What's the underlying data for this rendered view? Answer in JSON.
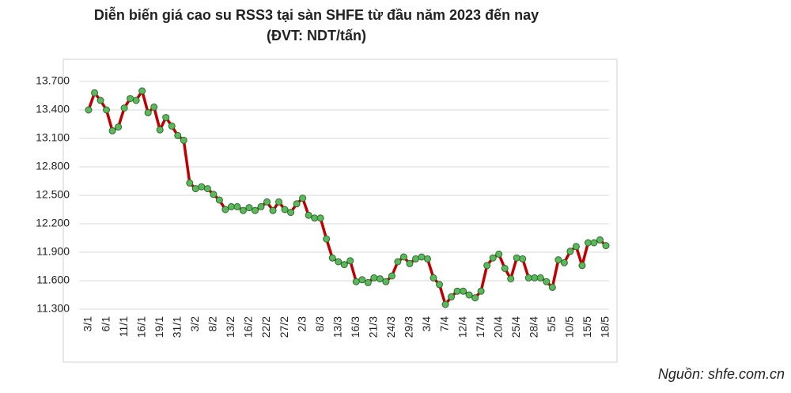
{
  "chart_data": {
    "type": "line",
    "title": "Diễn biến giá cao su RSS3 tại sàn SHFE từ đầu năm 2023 đến nay",
    "subtitle": "(ĐVT: NDT/tấn)",
    "source": "Nguồn: shfe.com.cn",
    "categories": [
      "3/1",
      null,
      null,
      "6/1",
      null,
      null,
      "11/1",
      null,
      null,
      "16/1",
      null,
      null,
      "19/1",
      null,
      null,
      "31/1",
      null,
      null,
      "3/2",
      null,
      null,
      "8/2",
      null,
      null,
      "13/2",
      null,
      null,
      "16/2",
      null,
      null,
      "22/2",
      null,
      null,
      "27/2",
      null,
      null,
      "2/3",
      null,
      null,
      "8/3",
      null,
      null,
      "13/3",
      null,
      null,
      "16/3",
      null,
      null,
      "21/3",
      null,
      null,
      "24/3",
      null,
      null,
      "29/3",
      null,
      null,
      "3/4",
      null,
      null,
      "7/4",
      null,
      null,
      "12/4",
      null,
      null,
      "17/4",
      null,
      null,
      "20/4",
      null,
      null,
      "25/4",
      null,
      null,
      "28/4",
      null,
      null,
      "5/5",
      null,
      null,
      "10/5",
      null,
      null,
      "15/5",
      null,
      null,
      "18/5"
    ],
    "values": [
      13400,
      13580,
      13500,
      13400,
      13180,
      13220,
      13420,
      13520,
      13500,
      13600,
      13370,
      13430,
      13190,
      13320,
      13230,
      13130,
      13080,
      12630,
      12570,
      12590,
      12570,
      12510,
      12450,
      12350,
      12380,
      12380,
      12340,
      12370,
      12340,
      12380,
      12430,
      12340,
      12430,
      12350,
      12320,
      12410,
      12470,
      12290,
      12260,
      12260,
      12040,
      11840,
      11800,
      11770,
      11810,
      11590,
      11610,
      11580,
      11630,
      11620,
      11590,
      11650,
      11800,
      11850,
      11780,
      11830,
      11850,
      11830,
      11630,
      11560,
      11350,
      11430,
      11490,
      11490,
      11450,
      11420,
      11490,
      11760,
      11840,
      11880,
      11730,
      11620,
      11840,
      11830,
      11630,
      11630,
      11630,
      11590,
      11530,
      11820,
      11790,
      11910,
      11960,
      11760,
      12000,
      12000,
      12030,
      11970
    ],
    "color": "#c00000",
    "marker_color": "#5cb85c",
    "ylim": [
      11300,
      13900
    ],
    "yticks": [
      {
        "value": 11300,
        "label": "11.300"
      },
      {
        "value": 11600,
        "label": "11.600"
      },
      {
        "value": 11900,
        "label": "11.900"
      },
      {
        "value": 12200,
        "label": "12.200"
      },
      {
        "value": 12500,
        "label": "12.500"
      },
      {
        "value": 12800,
        "label": "12.800"
      },
      {
        "value": 13100,
        "label": "13.100"
      },
      {
        "value": 13400,
        "label": "13.400"
      },
      {
        "value": 13700,
        "label": "13.700"
      }
    ],
    "grid": true
  }
}
